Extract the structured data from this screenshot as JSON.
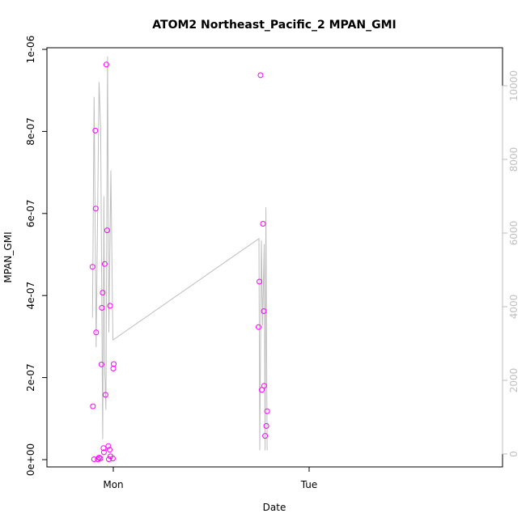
{
  "chart_data": {
    "type": "scatter",
    "title": "ATOM2 Northeast_Pacific_2 MPAN_GMI",
    "xlabel": "Date",
    "ylabel": "MPAN_GMI",
    "x_ticks": [
      "Mon",
      "Tue"
    ],
    "y_ticks": [
      "0e+00",
      "2e-07",
      "4e-07",
      "6e-07",
      "8e-07",
      "1e-06"
    ],
    "y2_ticks": [
      "0",
      "2000",
      "4000",
      "6000",
      "8000",
      "10000"
    ],
    "ylim": [
      0,
      1e-06
    ],
    "y2lim": [
      0,
      10000
    ],
    "colors": {
      "points": "#ff00ff",
      "line": "#bebebe",
      "axis": "#000000",
      "right_axis": "#bebebe"
    },
    "series": [
      {
        "mark": "points",
        "axis": "left",
        "x_hours": [
          -2.55,
          -2.5,
          -2.35,
          -2.2,
          -2.15,
          -2.1,
          -1.9,
          -1.75,
          -1.6,
          -1.45,
          -1.4,
          -1.3,
          -1.2,
          -1.15,
          -1.05,
          -0.95,
          -0.85,
          -0.75,
          -0.6,
          -0.55,
          -0.45,
          -0.4,
          -0.35,
          -0.05,
          0.0,
          0.05
        ],
        "values": [
          4.7e-07,
          1.3e-07,
          1e-09,
          8.02e-07,
          6.12e-07,
          3.1e-07,
          1e-09,
          5e-09,
          3e-09,
          2.32e-07,
          3.7e-07,
          4.07e-07,
          2.8e-08,
          1.8e-08,
          4.77e-07,
          1.58e-07,
          9.63e-07,
          5.59e-07,
          3.3e-08,
          1e-09,
          2.4e-08,
          3.75e-07,
          8e-09,
          3e-09,
          2.22e-07,
          2.33e-07
        ]
      },
      {
        "mark": "points",
        "axis": "left",
        "x_hours": [
          17.8,
          17.9,
          18.05,
          18.2,
          18.35,
          18.45,
          18.5,
          18.6,
          18.75,
          18.85
        ],
        "values": [
          3.23e-07,
          4.34e-07,
          9.37e-07,
          1.7e-07,
          5.75e-07,
          3.62e-07,
          1.8e-07,
          5.8e-08,
          8.2e-08,
          1.18e-07
        ]
      },
      {
        "mark": "line",
        "axis": "right",
        "x_hours": [
          -2.55,
          -2.35,
          -2.1,
          -1.75,
          -1.55,
          -1.3,
          -1.15,
          -1.05,
          -0.9,
          -0.7,
          -0.55,
          -0.3,
          -0.05,
          0.0,
          17.85,
          17.95,
          18.15,
          18.3,
          18.5,
          18.6,
          18.7,
          18.85
        ],
        "values": [
          3700,
          9700,
          2900,
          10100,
          8800,
          400,
          7000,
          2300,
          1200,
          10800,
          3300,
          7700,
          3100,
          3100,
          5850,
          100,
          5800,
          3500,
          5700,
          100,
          6700,
          100
        ]
      }
    ]
  }
}
